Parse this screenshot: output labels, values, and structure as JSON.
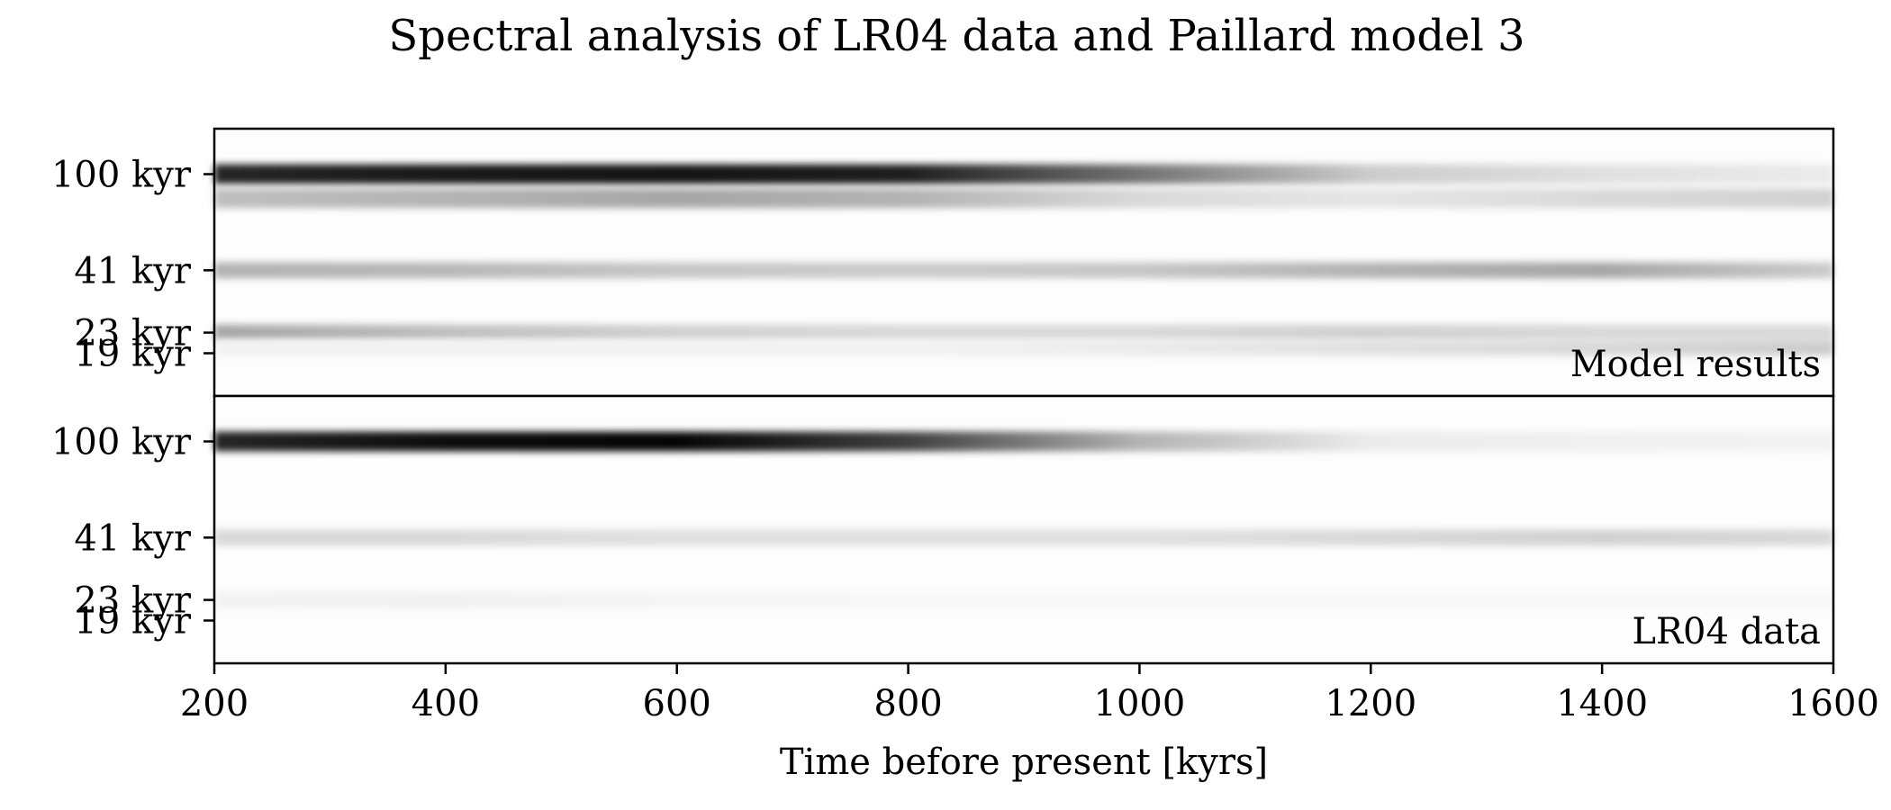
{
  "title": "Spectral analysis of LR04 data and Paillard model 3",
  "chart_data": {
    "type": "heatmap",
    "title": "Spectral analysis of LR04 data and Paillard model 3",
    "xlabel": "Time before present [kyrs]",
    "ylabel": "",
    "xlim": [
      200,
      1600
    ],
    "x_ticks": [
      200,
      400,
      600,
      800,
      1000,
      1200,
      1400,
      1600
    ],
    "y_period_ticks": [
      {
        "label": "100 kyr",
        "period": 100
      },
      {
        "label": "41 kyr",
        "period": 41
      },
      {
        "label": "23 kyr",
        "period": 23
      },
      {
        "label": "19 kyr",
        "period": 19
      }
    ],
    "colormap": "greys (white = low power, black = high power)",
    "grid": false,
    "panels": [
      {
        "label": "Model results",
        "bands": [
          {
            "period": 100,
            "power": [
              0.85,
              0.9,
              0.92,
              0.88,
              0.55,
              0.2,
              0.12,
              0.08
            ]
          },
          {
            "period": 80,
            "power": [
              0.25,
              0.3,
              0.35,
              0.3,
              0.15,
              0.1,
              0.15,
              0.18
            ]
          },
          {
            "period": 41,
            "power": [
              0.3,
              0.28,
              0.22,
              0.2,
              0.22,
              0.3,
              0.35,
              0.2
            ]
          },
          {
            "period": 23,
            "power": [
              0.35,
              0.25,
              0.18,
              0.15,
              0.15,
              0.18,
              0.15,
              0.15
            ]
          },
          {
            "period": 20,
            "power": [
              0.05,
              0.05,
              0.05,
              0.05,
              0.08,
              0.12,
              0.15,
              0.2
            ]
          }
        ]
      },
      {
        "label": "LR04 data",
        "bands": [
          {
            "period": 100,
            "power": [
              0.85,
              0.95,
              0.98,
              0.75,
              0.3,
              0.08,
              0.06,
              0.05
            ]
          },
          {
            "period": 41,
            "power": [
              0.15,
              0.15,
              0.12,
              0.12,
              0.12,
              0.15,
              0.18,
              0.15
            ]
          },
          {
            "period": 23,
            "power": [
              0.05,
              0.06,
              0.04,
              0.03,
              0.03,
              0.03,
              0.03,
              0.03
            ]
          }
        ]
      }
    ]
  }
}
